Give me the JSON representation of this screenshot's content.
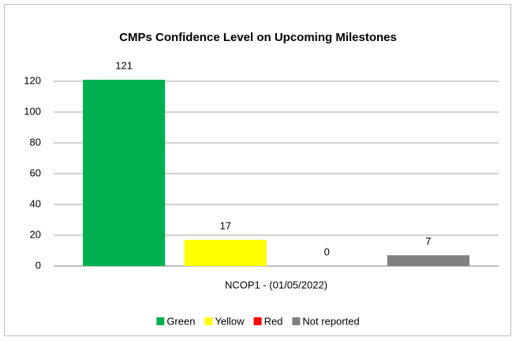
{
  "chart_data": {
    "type": "bar",
    "title": "CMPs Confidence Level on Upcoming Milestones",
    "categories": [
      "NCOP1 - (01/05/2022)"
    ],
    "series": [
      {
        "name": "Green",
        "color": "#00b050",
        "values": [
          121
        ]
      },
      {
        "name": "Yellow",
        "color": "#ffff00",
        "values": [
          17
        ]
      },
      {
        "name": "Red",
        "color": "#ff0000",
        "values": [
          0
        ]
      },
      {
        "name": "Not reported",
        "color": "#808080",
        "values": [
          7
        ]
      }
    ],
    "ylim": [
      0,
      120
    ],
    "yticks": [
      0,
      20,
      40,
      60,
      80,
      100,
      120
    ],
    "grid": true,
    "legend": "bottom"
  }
}
